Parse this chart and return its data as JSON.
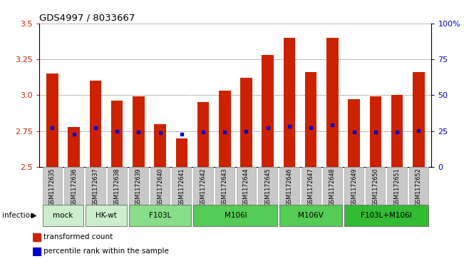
{
  "title": "GDS4997 / 8033667",
  "samples": [
    "GSM1172635",
    "GSM1172636",
    "GSM1172637",
    "GSM1172638",
    "GSM1172639",
    "GSM1172640",
    "GSM1172641",
    "GSM1172642",
    "GSM1172643",
    "GSM1172644",
    "GSM1172645",
    "GSM1172646",
    "GSM1172647",
    "GSM1172648",
    "GSM1172649",
    "GSM1172650",
    "GSM1172651",
    "GSM1172652"
  ],
  "bar_tops": [
    3.15,
    2.78,
    3.1,
    2.96,
    2.99,
    2.8,
    2.7,
    2.95,
    3.03,
    3.12,
    3.28,
    3.4,
    3.16,
    3.4,
    2.97,
    2.99,
    3.0,
    3.16
  ],
  "bar_bottoms": [
    2.5,
    2.5,
    2.5,
    2.5,
    2.5,
    2.5,
    2.5,
    2.5,
    2.5,
    2.5,
    2.5,
    2.5,
    2.5,
    2.5,
    2.5,
    2.5,
    2.5,
    2.5
  ],
  "blue_dot_y": [
    2.775,
    2.73,
    2.775,
    2.75,
    2.745,
    2.74,
    2.73,
    2.745,
    2.745,
    2.75,
    2.775,
    2.785,
    2.775,
    2.795,
    2.745,
    2.745,
    2.745,
    2.755
  ],
  "ylim": [
    2.5,
    3.5
  ],
  "right_ylim": [
    0,
    100
  ],
  "yticks_left": [
    2.5,
    2.75,
    3.0,
    3.25,
    3.5
  ],
  "yticks_right": [
    0,
    25,
    50,
    75,
    100
  ],
  "groups": [
    {
      "label": "mock",
      "start": 0,
      "end": 2,
      "color": "#cceecc"
    },
    {
      "label": "HK-wt",
      "start": 2,
      "end": 4,
      "color": "#cceecc"
    },
    {
      "label": "F103L",
      "start": 4,
      "end": 7,
      "color": "#88dd88"
    },
    {
      "label": "M106I",
      "start": 7,
      "end": 11,
      "color": "#55cc55"
    },
    {
      "label": "M106V",
      "start": 11,
      "end": 14,
      "color": "#55cc55"
    },
    {
      "label": "F103L+M106I",
      "start": 14,
      "end": 18,
      "color": "#33bb33"
    }
  ],
  "bar_color": "#cc2200",
  "dot_color": "#0000cc",
  "bg_color": "#ffffff",
  "tick_color_left": "#cc2200",
  "tick_color_right": "#0000cc",
  "infection_label": "infection",
  "legend_items": [
    {
      "label": "transformed count",
      "color": "#cc2200",
      "marker": "s"
    },
    {
      "label": "percentile rank within the sample",
      "color": "#0000cc",
      "marker": "s"
    }
  ]
}
